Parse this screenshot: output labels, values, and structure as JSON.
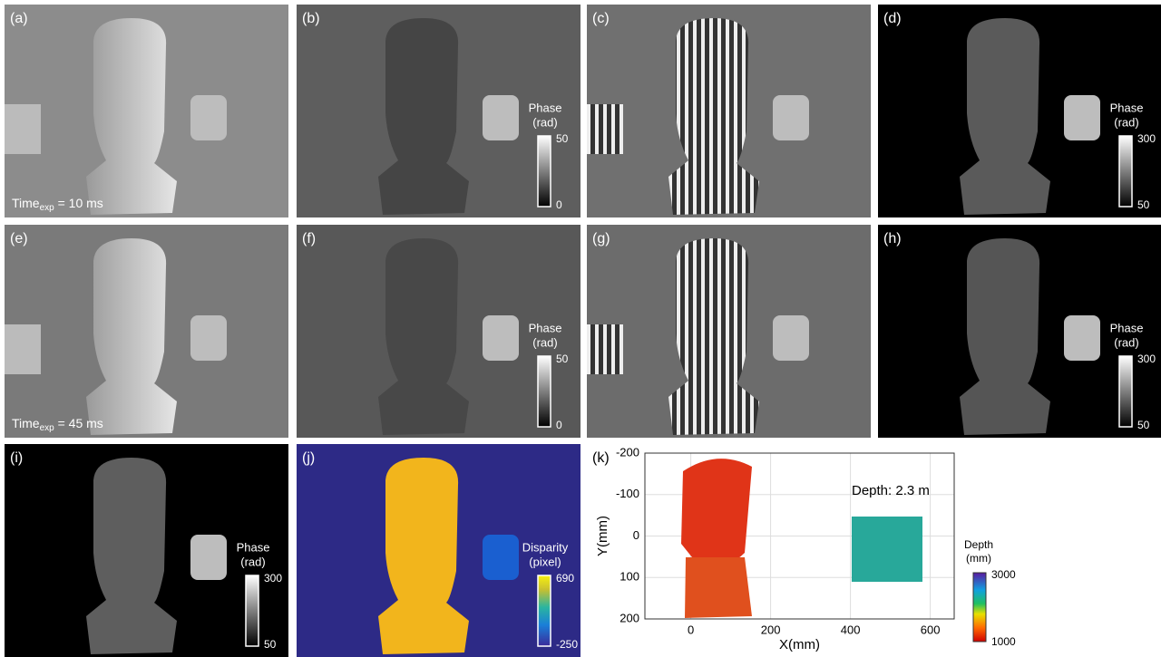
{
  "panels": [
    {
      "label": "(a)",
      "time": {
        "main": "Time",
        "sub": "exp",
        "rest": " = 10 ms"
      }
    },
    {
      "label": "(b)",
      "colorbar": {
        "title": [
          "Phase",
          "(rad)"
        ],
        "max": 50,
        "min": 0
      }
    },
    {
      "label": "(c)"
    },
    {
      "label": "(d)",
      "colorbar": {
        "title": [
          "Phase",
          "(rad)"
        ],
        "max": 300,
        "min": 50
      }
    },
    {
      "label": "(e)",
      "time": {
        "main": "Time",
        "sub": "exp",
        "rest": " = 45 ms"
      }
    },
    {
      "label": "(f)",
      "colorbar": {
        "title": [
          "Phase",
          "(rad)"
        ],
        "max": 50,
        "min": 0
      }
    },
    {
      "label": "(g)"
    },
    {
      "label": "(h)",
      "colorbar": {
        "title": [
          "Phase",
          "(rad)"
        ],
        "max": 300,
        "min": 50
      }
    },
    {
      "label": "(i)",
      "colorbar": {
        "title": [
          "Phase",
          "(rad)"
        ],
        "max": 300,
        "min": 50
      }
    },
    {
      "label": "(j)",
      "colorbar": {
        "title": [
          "Disparity",
          "(pixel)"
        ],
        "max": 690,
        "min": -250
      }
    },
    {
      "label": "(k)",
      "chart": {
        "xlabel": "X(mm)",
        "ylabel": "Y(mm)",
        "annotation": "Depth: 2.3 m",
        "xlim": [
          -115,
          660
        ],
        "ylim": [
          -200,
          200
        ],
        "xticks": [
          0,
          200,
          400,
          600
        ],
        "yticks": [
          -200,
          -100,
          0,
          100,
          200
        ],
        "colorbar": {
          "title": [
            "Depth",
            "(mm)"
          ],
          "max": 3000,
          "min": 1000
        }
      }
    }
  ]
}
